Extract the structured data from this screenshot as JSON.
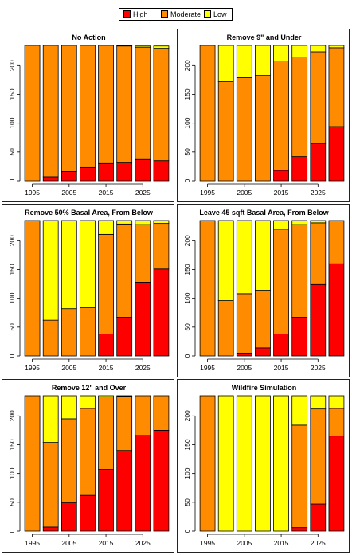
{
  "legend": {
    "items": [
      {
        "label": "High",
        "color": "#ff0000"
      },
      {
        "label": "Moderate",
        "color": "#ff8c00"
      },
      {
        "label": "Low",
        "color": "#ffff00"
      }
    ]
  },
  "chart_data": [
    {
      "type": "bar",
      "stacked": true,
      "title": "No Action",
      "x": [
        1995,
        2000,
        2005,
        2010,
        2015,
        2020,
        2025,
        2030
      ],
      "x_tick_labels": [
        "1995",
        "2005",
        "2015",
        "2025"
      ],
      "ylim": [
        0,
        235
      ],
      "y_ticks": [
        0,
        50,
        100,
        150,
        200
      ],
      "series": [
        {
          "name": "High",
          "color": "#ff0000",
          "values": [
            0,
            7,
            16,
            23,
            30,
            31,
            37,
            35
          ]
        },
        {
          "name": "Moderate",
          "color": "#ff8c00",
          "values": [
            235,
            228,
            219,
            212,
            205,
            203,
            195,
            195
          ]
        },
        {
          "name": "Low",
          "color": "#ffff00",
          "values": [
            0,
            0,
            0,
            0,
            0,
            1,
            2,
            4
          ]
        }
      ]
    },
    {
      "type": "bar",
      "stacked": true,
      "title": "Remove 9\" and Under",
      "x": [
        1995,
        2000,
        2005,
        2010,
        2015,
        2020,
        2025,
        2030
      ],
      "x_tick_labels": [
        "1995",
        "2005",
        "2015",
        "2025"
      ],
      "ylim": [
        0,
        235
      ],
      "y_ticks": [
        0,
        50,
        100,
        150,
        200
      ],
      "series": [
        {
          "name": "High",
          "color": "#ff0000",
          "values": [
            0,
            0,
            0,
            0,
            18,
            42,
            65,
            94
          ]
        },
        {
          "name": "Moderate",
          "color": "#ff8c00",
          "values": [
            235,
            172,
            179,
            183,
            190,
            173,
            159,
            137
          ]
        },
        {
          "name": "Low",
          "color": "#ffff00",
          "values": [
            0,
            63,
            56,
            52,
            27,
            20,
            11,
            4
          ]
        }
      ]
    },
    {
      "type": "bar",
      "stacked": true,
      "title": "Remove 50% Basal Area, From Below",
      "x": [
        1995,
        2000,
        2005,
        2010,
        2015,
        2020,
        2025,
        2030
      ],
      "x_tick_labels": [
        "1995",
        "2005",
        "2015",
        "2025"
      ],
      "ylim": [
        0,
        235
      ],
      "y_ticks": [
        0,
        50,
        100,
        150,
        200
      ],
      "series": [
        {
          "name": "High",
          "color": "#ff0000",
          "values": [
            0,
            0,
            0,
            0,
            38,
            67,
            128,
            151
          ]
        },
        {
          "name": "Moderate",
          "color": "#ff8c00",
          "values": [
            235,
            62,
            82,
            84,
            173,
            162,
            100,
            79
          ]
        },
        {
          "name": "Low",
          "color": "#ffff00",
          "values": [
            0,
            173,
            153,
            151,
            24,
            6,
            7,
            5
          ]
        }
      ]
    },
    {
      "type": "bar",
      "stacked": true,
      "title": "Leave 45 sqft Basal Area, From Below",
      "x": [
        1995,
        2000,
        2005,
        2010,
        2015,
        2020,
        2025,
        2030
      ],
      "x_tick_labels": [
        "1995",
        "2005",
        "2015",
        "2025"
      ],
      "ylim": [
        0,
        235
      ],
      "y_ticks": [
        0,
        50,
        100,
        150,
        200
      ],
      "series": [
        {
          "name": "High",
          "color": "#ff0000",
          "values": [
            0,
            0,
            5,
            14,
            38,
            67,
            124,
            160
          ]
        },
        {
          "name": "Moderate",
          "color": "#ff8c00",
          "values": [
            235,
            96,
            103,
            100,
            182,
            161,
            107,
            75
          ]
        },
        {
          "name": "Low",
          "color": "#ffff00",
          "values": [
            0,
            139,
            127,
            121,
            15,
            7,
            4,
            0
          ]
        }
      ]
    },
    {
      "type": "bar",
      "stacked": true,
      "title": "Remove 12\" and Over",
      "x": [
        1995,
        2000,
        2005,
        2010,
        2015,
        2020,
        2025,
        2030
      ],
      "x_tick_labels": [
        "1995",
        "2005",
        "2015",
        "2025"
      ],
      "ylim": [
        0,
        235
      ],
      "y_ticks": [
        0,
        50,
        100,
        150,
        200
      ],
      "series": [
        {
          "name": "High",
          "color": "#ff0000",
          "values": [
            0,
            7,
            49,
            62,
            107,
            140,
            166,
            175
          ]
        },
        {
          "name": "Moderate",
          "color": "#ff8c00",
          "values": [
            235,
            147,
            146,
            151,
            126,
            94,
            69,
            60
          ]
        },
        {
          "name": "Low",
          "color": "#ffff00",
          "values": [
            0,
            81,
            40,
            22,
            2,
            1,
            0,
            0
          ]
        }
      ]
    },
    {
      "type": "bar",
      "stacked": true,
      "title": "Wildfire Simulation",
      "x": [
        1995,
        2000,
        2005,
        2010,
        2015,
        2020,
        2025,
        2030
      ],
      "x_tick_labels": [
        "1995",
        "2005",
        "2015",
        "2025"
      ],
      "ylim": [
        0,
        235
      ],
      "y_ticks": [
        0,
        50,
        100,
        150,
        200
      ],
      "series": [
        {
          "name": "High",
          "color": "#ff0000",
          "values": [
            0,
            0,
            0,
            0,
            0,
            6,
            47,
            165
          ]
        },
        {
          "name": "Moderate",
          "color": "#ff8c00",
          "values": [
            235,
            0,
            0,
            0,
            0,
            178,
            165,
            48
          ]
        },
        {
          "name": "Low",
          "color": "#ffff00",
          "values": [
            0,
            235,
            235,
            235,
            235,
            51,
            23,
            22
          ]
        }
      ]
    }
  ]
}
